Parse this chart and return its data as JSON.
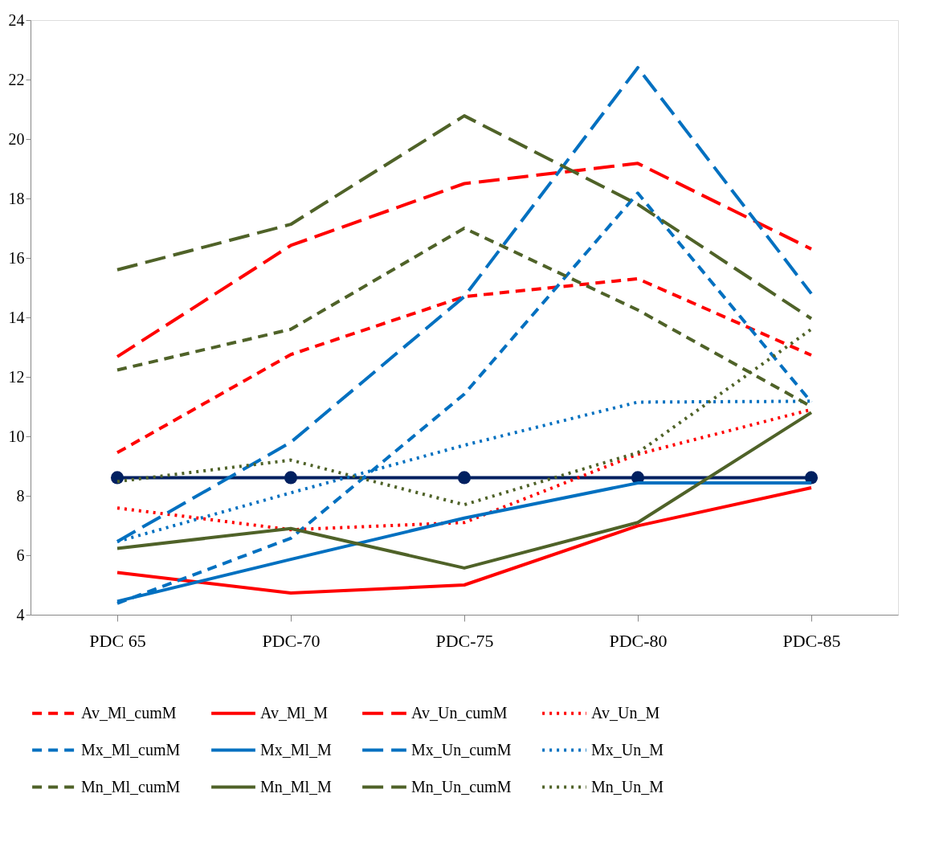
{
  "chart_data": {
    "type": "line",
    "categories": [
      "PDC  65",
      "PDC-70",
      "PDC-75",
      "PDC-80",
      "PDC-85"
    ],
    "ylim": [
      4,
      24
    ],
    "yticks": [
      4,
      6,
      8,
      10,
      12,
      14,
      16,
      18,
      20,
      22,
      24
    ],
    "grid": false,
    "legend": "bottom",
    "marker": "none",
    "series": [
      {
        "name": "Av_Ml_cumM",
        "color": "#ff0000",
        "line_style": "dashed",
        "values": [
          9.45,
          12.75,
          14.7,
          15.3,
          12.73
        ]
      },
      {
        "name": "Av_Ml_M",
        "color": "#ff0000",
        "line_style": "solid",
        "values": [
          5.42,
          4.73,
          5.0,
          6.99,
          8.27
        ]
      },
      {
        "name": "Av_Un_cumM",
        "color": "#ff0000",
        "line_style": "longdash",
        "values": [
          12.68,
          16.42,
          18.5,
          19.18,
          16.3
        ]
      },
      {
        "name": "Av_Un_M",
        "color": "#ff0000",
        "line_style": "dotted",
        "values": [
          7.59,
          6.86,
          7.1,
          9.4,
          10.9
        ]
      },
      {
        "name": "Mx_Ml_cumM",
        "color": "#0070c0",
        "line_style": "dashed",
        "values": [
          4.38,
          6.57,
          11.42,
          18.18,
          11.15
        ]
      },
      {
        "name": "Mx_Ml_M",
        "color": "#0070c0",
        "line_style": "solid",
        "values": [
          4.45,
          5.86,
          7.25,
          8.43,
          8.43
        ]
      },
      {
        "name": "Mx_Un_cumM",
        "color": "#0070c0",
        "line_style": "longdash",
        "values": [
          6.46,
          9.8,
          14.7,
          22.4,
          14.8
        ]
      },
      {
        "name": "Mx_Un_M",
        "color": "#0070c0",
        "line_style": "dotted",
        "values": [
          6.46,
          8.1,
          9.7,
          11.15,
          11.18
        ]
      },
      {
        "name": "Mn_Ml_cumM",
        "color": "#4f6228",
        "line_style": "dashed",
        "values": [
          12.23,
          13.6,
          17.0,
          14.25,
          11.0
        ]
      },
      {
        "name": "Mn_Ml_M",
        "color": "#4f6228",
        "line_style": "solid",
        "values": [
          6.23,
          6.9,
          5.57,
          7.1,
          10.8
        ]
      },
      {
        "name": "Mn_Un_cumM",
        "color": "#4f6228",
        "line_style": "longdash",
        "values": [
          15.6,
          17.13,
          20.78,
          17.8,
          13.96
        ]
      },
      {
        "name": "Mn_Un_M",
        "color": "#4f6228",
        "line_style": "dotted",
        "values": [
          8.48,
          9.2,
          7.7,
          9.45,
          13.6
        ]
      },
      {
        "color": "#002060",
        "line_style": "solid",
        "marker": "circle",
        "values": [
          8.61,
          8.61,
          8.61,
          8.61,
          8.61
        ]
      }
    ]
  }
}
